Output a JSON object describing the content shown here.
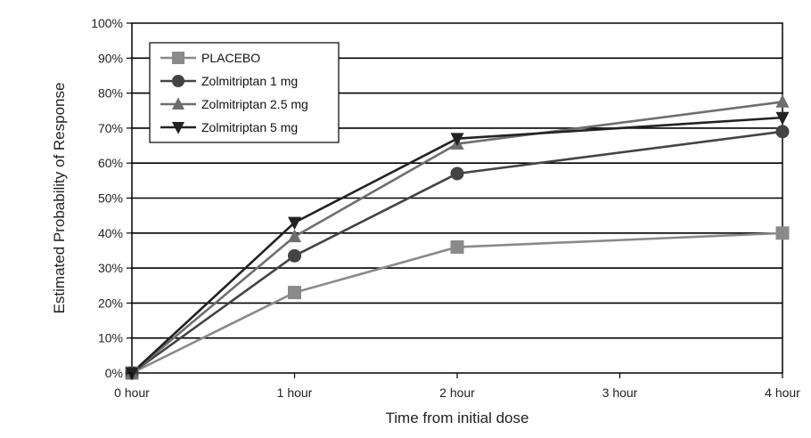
{
  "chart_data": {
    "type": "line",
    "title": "",
    "xlabel": "Time from initial dose",
    "ylabel": "Estimated Probability of Response",
    "x": [
      0,
      1,
      2,
      3,
      4
    ],
    "x_tick_labels": [
      "0 hour",
      "1 hour",
      "2 hour",
      "3 hour",
      "4 hour"
    ],
    "y_tick_labels": [
      "0%",
      "10%",
      "20%",
      "30%",
      "40%",
      "50%",
      "60%",
      "70%",
      "80%",
      "90%",
      "100%"
    ],
    "ylim": [
      0,
      100
    ],
    "xlim": [
      0,
      4
    ],
    "grid": "horizontal",
    "legend_position": "top-left",
    "series": [
      {
        "name": "PLACEBO",
        "marker": "square",
        "color": "#8a8a8a",
        "x": [
          0,
          1,
          2,
          4
        ],
        "values": [
          0,
          23,
          36,
          40
        ]
      },
      {
        "name": "Zolmitriptan 1 mg",
        "marker": "circle",
        "color": "#444444",
        "x": [
          0,
          1,
          2,
          4
        ],
        "values": [
          0,
          33.5,
          57,
          69
        ]
      },
      {
        "name": "Zolmitriptan 2.5 mg",
        "marker": "triangle-up",
        "color": "#6e6e6e",
        "x": [
          0,
          1,
          2,
          4
        ],
        "values": [
          0,
          39,
          65.5,
          77.5
        ]
      },
      {
        "name": "Zolmitriptan 5 mg",
        "marker": "triangle-down",
        "color": "#222222",
        "x": [
          0,
          1,
          2,
          4
        ],
        "values": [
          0,
          43,
          67,
          73
        ]
      }
    ]
  }
}
